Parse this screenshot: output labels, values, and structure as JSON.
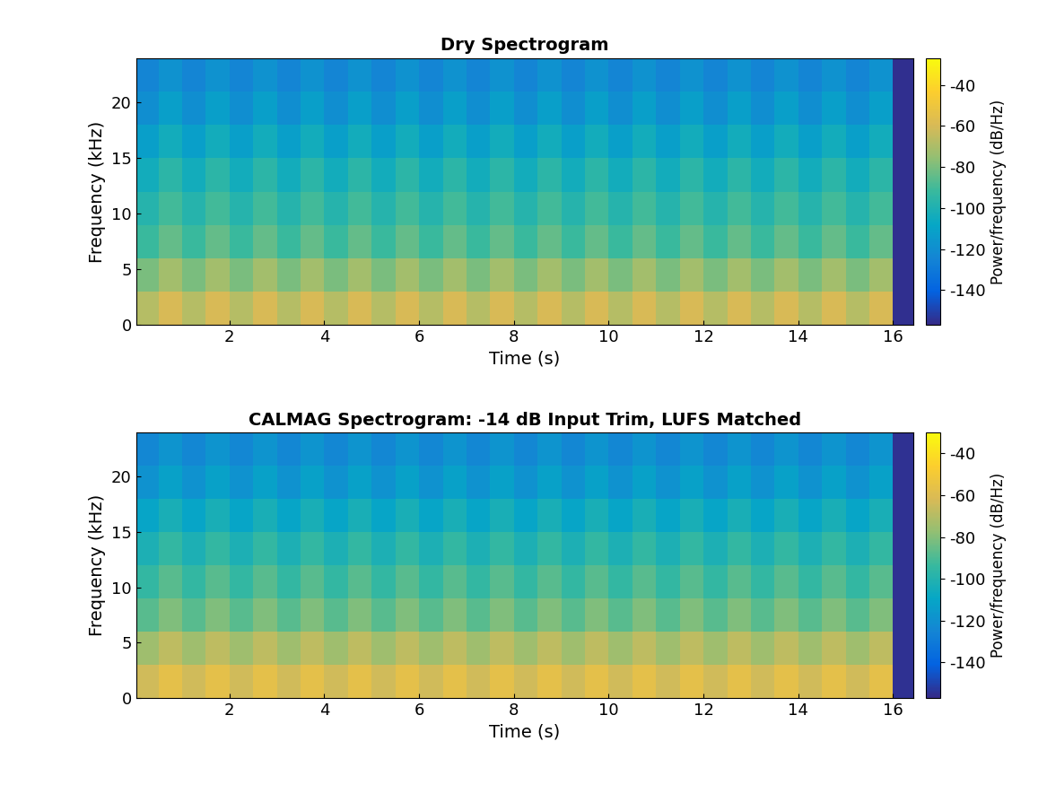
{
  "chart_data": [
    {
      "type": "heatmap",
      "title": "Dry Spectrogram",
      "x_label": "Time (s)",
      "y_label": "Frequency (kHz)",
      "xlim": [
        0.03,
        16.42
      ],
      "ylim": [
        0,
        24
      ],
      "xticks": [
        2,
        4,
        6,
        8,
        10,
        12,
        14,
        16
      ],
      "yticks": [
        0,
        5,
        10,
        15,
        20
      ],
      "x_edges": [
        0.03,
        0.5,
        1,
        1.5,
        2,
        2.5,
        3,
        3.5,
        4,
        4.5,
        5,
        5.5,
        6,
        6.5,
        7,
        7.5,
        8,
        8.5,
        9,
        9.5,
        10,
        10.5,
        11,
        11.5,
        12,
        12.5,
        13,
        13.5,
        14,
        14.5,
        15,
        15.5,
        16,
        16.42
      ],
      "y_edges": [
        0,
        3,
        6,
        9,
        12,
        15,
        18,
        21,
        24
      ],
      "cells": [
        [
          -68,
          -60,
          -68,
          -60,
          -68,
          -60,
          -68,
          -60,
          -68,
          -60,
          -68,
          -60,
          -68,
          -60,
          -68,
          -60,
          -68,
          -60,
          -68,
          -60,
          -68,
          -60,
          -68,
          -60,
          -68,
          -60,
          -68,
          -60,
          -68,
          -60,
          -68,
          -60,
          -155
        ],
        [
          -80,
          -72,
          -80,
          -72,
          -80,
          -72,
          -80,
          -72,
          -80,
          -72,
          -80,
          -72,
          -80,
          -72,
          -80,
          -72,
          -80,
          -72,
          -80,
          -72,
          -80,
          -72,
          -80,
          -72,
          -80,
          -72,
          -80,
          -72,
          -80,
          -72,
          -80,
          -72,
          -155
        ],
        [
          -92,
          -84,
          -92,
          -84,
          -92,
          -84,
          -92,
          -84,
          -92,
          -84,
          -92,
          -84,
          -92,
          -84,
          -92,
          -84,
          -92,
          -84,
          -92,
          -84,
          -92,
          -84,
          -92,
          -84,
          -92,
          -84,
          -92,
          -84,
          -92,
          -84,
          -92,
          -84,
          -155
        ],
        [
          -98,
          -90,
          -98,
          -90,
          -98,
          -90,
          -98,
          -90,
          -98,
          -90,
          -98,
          -90,
          -98,
          -90,
          -98,
          -90,
          -98,
          -90,
          -98,
          -90,
          -98,
          -90,
          -98,
          -90,
          -98,
          -90,
          -98,
          -90,
          -98,
          -90,
          -98,
          -90,
          -155
        ],
        [
          -104,
          -96,
          -104,
          -96,
          -104,
          -96,
          -104,
          -96,
          -104,
          -96,
          -104,
          -96,
          -104,
          -96,
          -104,
          -96,
          -104,
          -96,
          -104,
          -96,
          -104,
          -96,
          -104,
          -96,
          -104,
          -96,
          -104,
          -96,
          -104,
          -96,
          -104,
          -96,
          -155
        ],
        [
          -112,
          -104,
          -112,
          -104,
          -112,
          -104,
          -112,
          -104,
          -112,
          -104,
          -112,
          -104,
          -112,
          -104,
          -112,
          -104,
          -112,
          -104,
          -112,
          -104,
          -112,
          -104,
          -112,
          -104,
          -112,
          -104,
          -112,
          -104,
          -112,
          -104,
          -112,
          -104,
          -155
        ],
        [
          -120,
          -112,
          -120,
          -112,
          -120,
          -112,
          -120,
          -112,
          -120,
          -112,
          -120,
          -112,
          -120,
          -112,
          -120,
          -112,
          -120,
          -112,
          -120,
          -112,
          -120,
          -112,
          -120,
          -112,
          -120,
          -112,
          -120,
          -112,
          -120,
          -112,
          -120,
          -112,
          -155
        ],
        [
          -124,
          -118,
          -124,
          -118,
          -124,
          -118,
          -124,
          -118,
          -124,
          -118,
          -124,
          -118,
          -124,
          -118,
          -124,
          -118,
          -124,
          -118,
          -124,
          -118,
          -124,
          -118,
          -124,
          -118,
          -124,
          -118,
          -124,
          -118,
          -124,
          -118,
          -124,
          -118,
          -155
        ]
      ],
      "colorbar_label": "Power/frequency (dB/Hz)",
      "colorbar_range": [
        -157,
        -27
      ],
      "colorbar_ticks": [
        -140,
        -120,
        -100,
        -80,
        -60,
        -40
      ]
    },
    {
      "type": "heatmap",
      "title": "CALMAG Spectrogram: -14 dB Input Trim, LUFS Matched",
      "x_label": "Time (s)",
      "y_label": "Frequency (kHz)",
      "xlim": [
        0.03,
        16.42
      ],
      "ylim": [
        0,
        24
      ],
      "xticks": [
        2,
        4,
        6,
        8,
        10,
        12,
        14,
        16
      ],
      "yticks": [
        0,
        5,
        10,
        15,
        20
      ],
      "x_edges": [
        0.03,
        0.5,
        1,
        1.5,
        2,
        2.5,
        3,
        3.5,
        4,
        4.5,
        5,
        5.5,
        6,
        6.5,
        7,
        7.5,
        8,
        8.5,
        9,
        9.5,
        10,
        10.5,
        11,
        11.5,
        12,
        12.5,
        13,
        13.5,
        14,
        14.5,
        15,
        15.5,
        16,
        16.42
      ],
      "y_edges": [
        0,
        3,
        6,
        9,
        12,
        15,
        18,
        21,
        24
      ],
      "cells": [
        [
          -64,
          -57,
          -64,
          -57,
          -64,
          -57,
          -64,
          -57,
          -64,
          -57,
          -64,
          -57,
          -64,
          -57,
          -64,
          -57,
          -64,
          -57,
          -64,
          -57,
          -64,
          -57,
          -64,
          -57,
          -64,
          -57,
          -64,
          -57,
          -64,
          -57,
          -64,
          -57,
          -155
        ],
        [
          -75,
          -68,
          -75,
          -68,
          -75,
          -68,
          -75,
          -68,
          -75,
          -68,
          -75,
          -68,
          -75,
          -68,
          -75,
          -68,
          -75,
          -68,
          -75,
          -68,
          -75,
          -68,
          -75,
          -68,
          -75,
          -68,
          -75,
          -68,
          -75,
          -68,
          -75,
          -68,
          -155
        ],
        [
          -88,
          -81,
          -88,
          -81,
          -88,
          -81,
          -88,
          -81,
          -88,
          -81,
          -88,
          -81,
          -88,
          -81,
          -88,
          -81,
          -88,
          -81,
          -88,
          -81,
          -88,
          -81,
          -88,
          -81,
          -88,
          -81,
          -88,
          -81,
          -88,
          -81,
          -88,
          -81,
          -155
        ],
        [
          -95,
          -88,
          -95,
          -88,
          -95,
          -88,
          -95,
          -88,
          -95,
          -88,
          -95,
          -88,
          -95,
          -88,
          -95,
          -88,
          -95,
          -88,
          -95,
          -88,
          -95,
          -88,
          -95,
          -88,
          -95,
          -88,
          -95,
          -88,
          -95,
          -88,
          -95,
          -88,
          -155
        ],
        [
          -102,
          -95,
          -102,
          -95,
          -102,
          -95,
          -102,
          -95,
          -102,
          -95,
          -102,
          -95,
          -102,
          -95,
          -102,
          -95,
          -102,
          -95,
          -102,
          -95,
          -102,
          -95,
          -102,
          -95,
          -102,
          -95,
          -102,
          -95,
          -102,
          -95,
          -102,
          -95,
          -155
        ],
        [
          -110,
          -103,
          -110,
          -103,
          -110,
          -103,
          -110,
          -103,
          -110,
          -103,
          -110,
          -103,
          -110,
          -103,
          -110,
          -103,
          -110,
          -103,
          -110,
          -103,
          -110,
          -103,
          -110,
          -103,
          -110,
          -103,
          -110,
          -103,
          -110,
          -103,
          -110,
          -103,
          -155
        ],
        [
          -119,
          -112,
          -119,
          -112,
          -119,
          -112,
          -119,
          -112,
          -119,
          -112,
          -119,
          -112,
          -119,
          -112,
          -119,
          -112,
          -119,
          -112,
          -119,
          -112,
          -119,
          -112,
          -119,
          -112,
          -119,
          -112,
          -119,
          -112,
          -119,
          -112,
          -119,
          -112,
          -155
        ],
        [
          -124,
          -118,
          -124,
          -118,
          -124,
          -118,
          -124,
          -118,
          -124,
          -118,
          -124,
          -118,
          -124,
          -118,
          -124,
          -118,
          -124,
          -118,
          -124,
          -118,
          -124,
          -118,
          -124,
          -118,
          -124,
          -118,
          -124,
          -118,
          -124,
          -118,
          -124,
          -118,
          -155
        ]
      ],
      "colorbar_label": "Power/frequency (dB/Hz)",
      "colorbar_range": [
        -157,
        -30
      ],
      "colorbar_ticks": [
        -140,
        -120,
        -100,
        -80,
        -60,
        -40
      ]
    }
  ]
}
